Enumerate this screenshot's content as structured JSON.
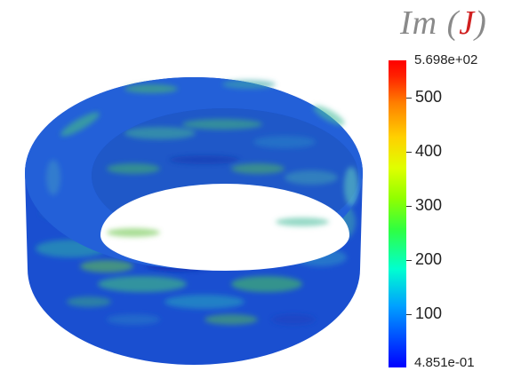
{
  "title_function": "Im",
  "title_variable": "J",
  "colorbar": {
    "max_label": "5.698e+02",
    "min_label": "4.851e-01",
    "min": 0.4851,
    "max": 569.8,
    "ticks": [
      {
        "value": 500,
        "label": "500"
      },
      {
        "value": 400,
        "label": "400"
      },
      {
        "value": 300,
        "label": "300"
      },
      {
        "value": 200,
        "label": "200"
      },
      {
        "value": 100,
        "label": "100"
      }
    ]
  },
  "colors": {
    "low": "#0000ff",
    "mid": "#30ff40",
    "high": "#ff0000"
  }
}
